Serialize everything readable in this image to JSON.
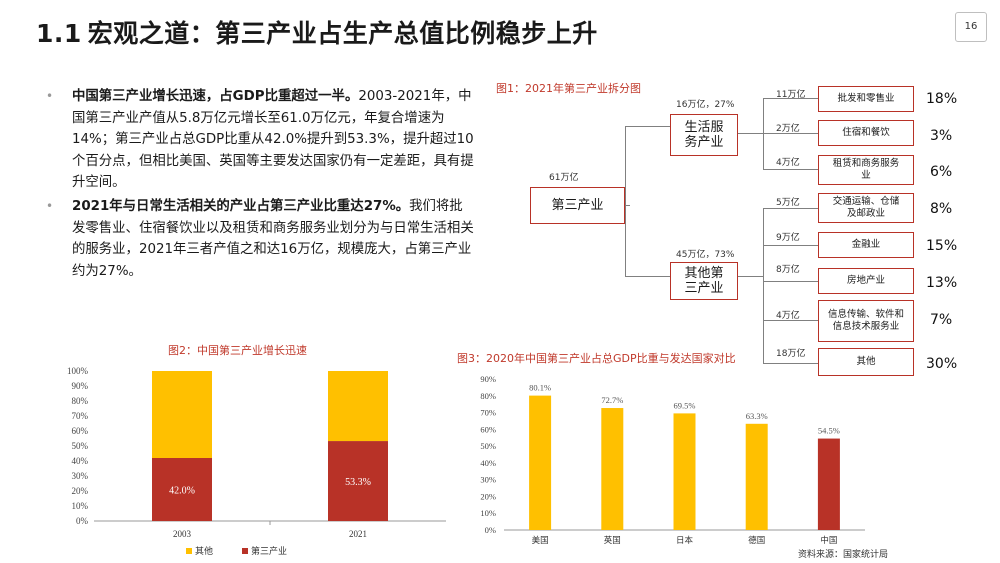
{
  "page": {
    "title_num": "1.1",
    "title_text": "宏观之道：第三产业占生产总值比例稳步上升",
    "page_number": "16"
  },
  "bullets": [
    {
      "bold": "中国第三产业增长迅速，占GDP比重超过一半。",
      "text": "2003-2021年，中国第三产业产值从5.8万亿元增长至61.0万亿元，年复合增速为14%；第三产业占总GDP比重从42.0%提升到53.3%，提升超过10个百分点，但相比美国、英国等主要发达国家仍有一定差距，具有提升空间。"
    },
    {
      "bold": "2021年与日常生活相关的产业占第三产业比重达27%。",
      "text": "我们将批发零售业、住宿餐饮业以及租赁和商务服务业划分为与日常生活相关的服务业，2021年三者产值之和达16万亿，规模庞大，占第三产业约为27%。"
    }
  ],
  "fig1": {
    "title": "图1：2021年第三产业拆分图",
    "root": {
      "label": "第三产业",
      "value": "61万亿"
    },
    "groups": [
      {
        "label": "生活服务产业",
        "value": "16万亿，27%"
      },
      {
        "label": "其他第三产业",
        "value": "45万亿，73%"
      }
    ],
    "leaves": [
      {
        "label": "批发和零售业",
        "value": "11万亿",
        "pct": "18%"
      },
      {
        "label": "住宿和餐饮",
        "value": "2万亿",
        "pct": "3%"
      },
      {
        "label": "租赁和商务服务业",
        "value": "4万亿",
        "pct": "6%"
      },
      {
        "label": "交通运输、仓储及邮政业",
        "value": "5万亿",
        "pct": "8%"
      },
      {
        "label": "金融业",
        "value": "9万亿",
        "pct": "15%"
      },
      {
        "label": "房地产业",
        "value": "8万亿",
        "pct": "13%"
      },
      {
        "label": "信息传输、软件和信息技术服务业",
        "value": "4万亿",
        "pct": "7%"
      },
      {
        "label": "其他",
        "value": "18万亿",
        "pct": "30%"
      }
    ]
  },
  "chart_data": [
    {
      "type": "bar",
      "title": "图2：中国第三产业增长迅速",
      "stacked": true,
      "categories": [
        "2003",
        "2021"
      ],
      "series": [
        {
          "name": "第三产业",
          "values": [
            42.0,
            53.3
          ],
          "color": "#b83227"
        },
        {
          "name": "其他",
          "values": [
            58.0,
            46.7
          ],
          "color": "#ffc000"
        }
      ],
      "data_labels": [
        "42.0%",
        "53.3%"
      ],
      "ylim": [
        0,
        100
      ],
      "yticks": [
        "0%",
        "10%",
        "20%",
        "30%",
        "40%",
        "50%",
        "60%",
        "70%",
        "80%",
        "90%",
        "100%"
      ],
      "legend": "bottom"
    },
    {
      "type": "bar",
      "title": "图3：2020年中国第三产业占总GDP比重与发达国家对比",
      "categories": [
        "美国",
        "英国",
        "日本",
        "德国",
        "中国"
      ],
      "values": [
        80.1,
        72.7,
        69.5,
        63.3,
        54.5
      ],
      "data_labels": [
        "80.1%",
        "72.7%",
        "69.5%",
        "63.3%",
        "54.5%"
      ],
      "colors": [
        "#ffc000",
        "#ffc000",
        "#ffc000",
        "#ffc000",
        "#b83227"
      ],
      "ylim": [
        0,
        90
      ],
      "yticks": [
        "0%",
        "10%",
        "20%",
        "30%",
        "40%",
        "50%",
        "60%",
        "70%",
        "80%",
        "90%"
      ],
      "source": "资料来源：国家统计局"
    }
  ]
}
